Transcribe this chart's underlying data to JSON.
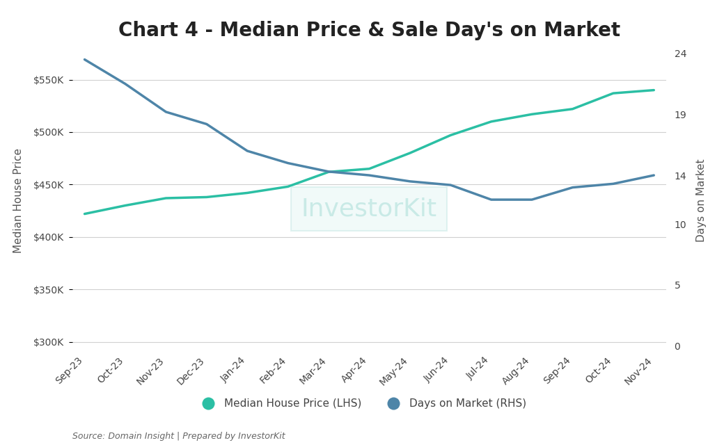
{
  "title": "Chart 4 - Median Price & Sale Day's on Market",
  "categories": [
    "Sep-23",
    "Oct-23",
    "Nov-23",
    "Dec-23",
    "Jan-24",
    "Feb-24",
    "Mar-24",
    "Apr-24",
    "May-24",
    "Jun-24",
    "Jul-24",
    "Aug-24",
    "Sep-24",
    "Oct-24",
    "Nov-24"
  ],
  "median_price": [
    422000,
    430000,
    437000,
    438000,
    442000,
    448000,
    462000,
    465000,
    480000,
    497000,
    510000,
    517000,
    522000,
    537000,
    540000
  ],
  "days_on_market": [
    23.5,
    21.5,
    19.2,
    18.2,
    16.0,
    15.0,
    14.3,
    14.0,
    13.5,
    13.2,
    12.0,
    12.0,
    13.0,
    13.3,
    14.0
  ],
  "price_color": "#2bbfa4",
  "dom_color": "#4e85a8",
  "ylim_left": [
    295000,
    575000
  ],
  "ylim_right": [
    -0.1,
    24
  ],
  "yticks_left": [
    300000,
    350000,
    400000,
    450000,
    500000,
    550000
  ],
  "yticks_right": [
    0,
    5,
    10,
    14,
    19,
    24
  ],
  "ylabel_left": "Median House Price",
  "ylabel_right": "Days on Market",
  "source_text": "Source: Domain Insight | Prepared by InvestorKit",
  "watermark": "InvestorKit",
  "legend_price": "Median House Price (LHS)",
  "legend_dom": "Days on Market (RHS)",
  "background_color": "#ffffff",
  "grid_color": "#d0d0d0",
  "title_fontsize": 20,
  "label_fontsize": 11,
  "tick_fontsize": 10,
  "line_width": 2.5
}
